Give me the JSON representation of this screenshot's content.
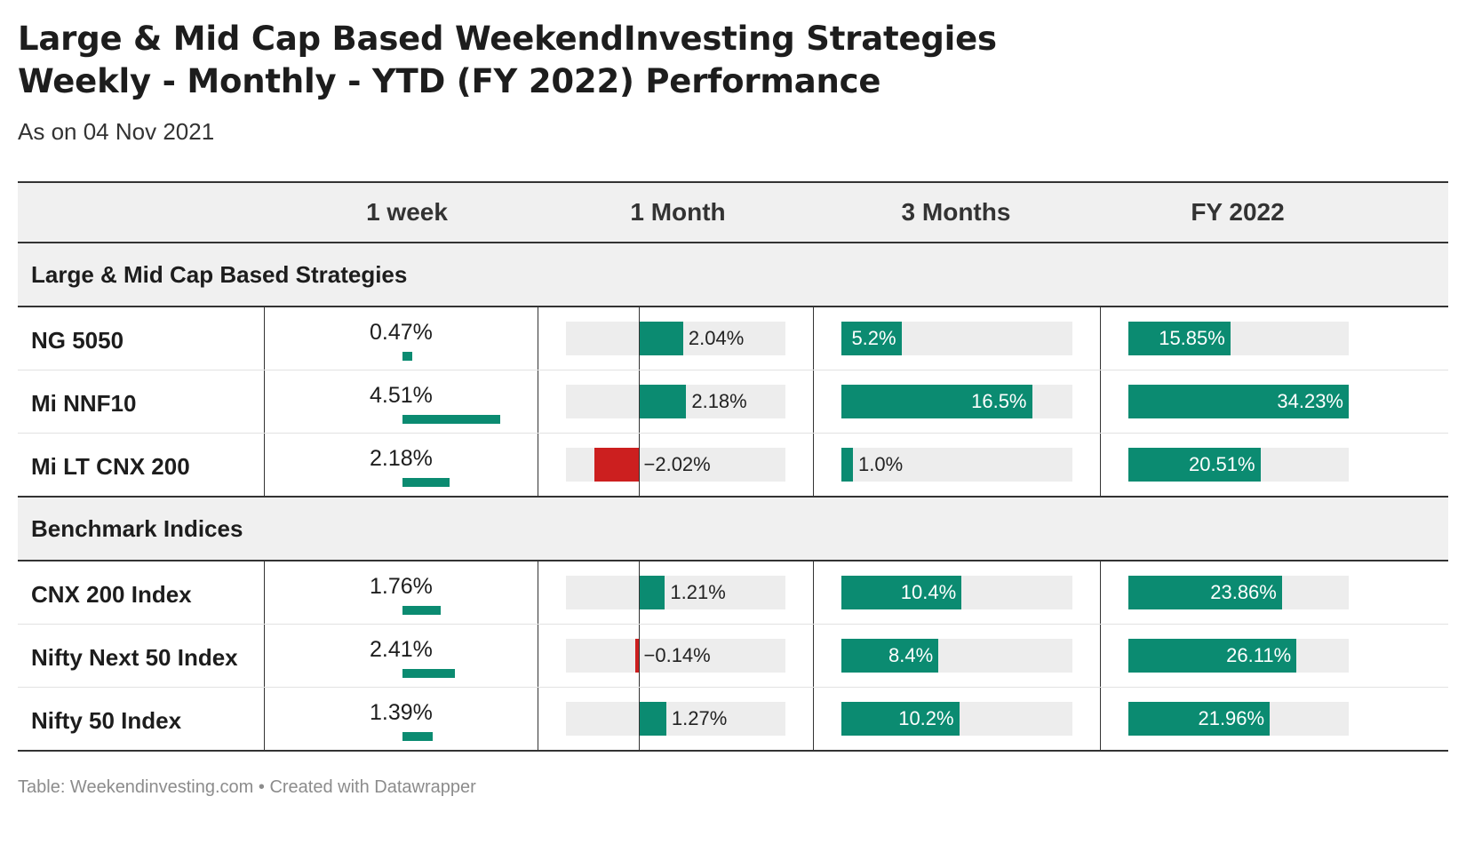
{
  "title_line1": "Large & Mid Cap Based WeekendInvesting Strategies",
  "title_line2": "Weekly - Monthly - YTD (FY 2022) Performance",
  "subtitle": "As on 04 Nov 2021",
  "footer": "Table: Weekendinvesting.com • Created with Datawrapper",
  "colors": {
    "positive": "#0b8b71",
    "negative": "#cc1f1f",
    "track": "#ededed",
    "header_bg": "#f0f0f0"
  },
  "chart_data": {
    "type": "table",
    "columns": [
      "",
      "1 week",
      "1 Month",
      "3 Months",
      "FY 2022"
    ],
    "groups": [
      {
        "name": "Large & Mid Cap Based Strategies",
        "rows": [
          {
            "name": "NG 5050",
            "week": 0.47,
            "week_label": "0.47%",
            "month": 2.04,
            "month_label": "2.04%",
            "three_months": 5.2,
            "three_months_label": "5.2%",
            "fy": 15.85,
            "fy_label": "15.85%"
          },
          {
            "name": "Mi NNF10",
            "week": 4.51,
            "week_label": "4.51%",
            "month": 2.18,
            "month_label": "2.18%",
            "three_months": 16.5,
            "three_months_label": "16.5%",
            "fy": 34.23,
            "fy_label": "34.23%"
          },
          {
            "name": "Mi LT CNX 200",
            "week": 2.18,
            "week_label": "2.18%",
            "month": -2.02,
            "month_label": "−2.02%",
            "three_months": 1.0,
            "three_months_label": "1.0%",
            "fy": 20.51,
            "fy_label": "20.51%"
          }
        ]
      },
      {
        "name": "Benchmark Indices",
        "rows": [
          {
            "name": "CNX 200 Index",
            "week": 1.76,
            "week_label": "1.76%",
            "month": 1.21,
            "month_label": "1.21%",
            "three_months": 10.4,
            "three_months_label": "10.4%",
            "fy": 23.86,
            "fy_label": "23.86%"
          },
          {
            "name": "Nifty Next 50 Index",
            "week": 2.41,
            "week_label": "2.41%",
            "month": -0.14,
            "month_label": "−0.14%",
            "three_months": 8.4,
            "three_months_label": "8.4%",
            "fy": 26.11,
            "fy_label": "26.11%"
          },
          {
            "name": "Nifty 50 Index",
            "week": 1.39,
            "week_label": "1.39%",
            "month": 1.27,
            "month_label": "1.27%",
            "three_months": 10.2,
            "three_months_label": "10.2%",
            "fy": 21.96,
            "fy_label": "21.96%"
          }
        ]
      }
    ],
    "scales": {
      "week_max": 4.51,
      "month_range": [
        -3.3,
        6.7
      ],
      "three_months_max": 20,
      "fy_max": 34.23
    }
  }
}
